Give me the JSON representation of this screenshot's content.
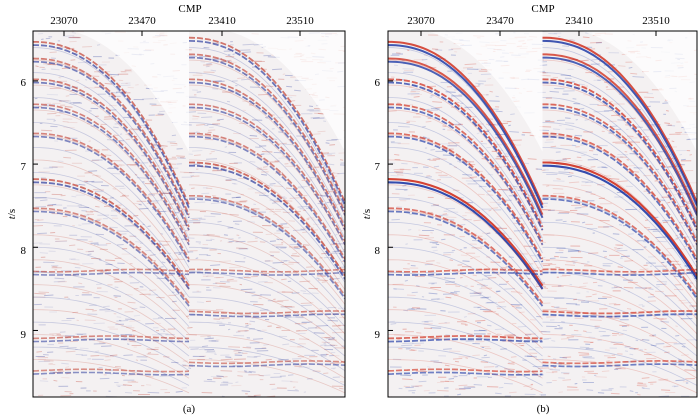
{
  "chart_data": [
    {
      "type": "heatmap",
      "panel_label": "(a)",
      "xlabel": "CMP",
      "ylabel": "t/s",
      "x_tick_labels": [
        "23070",
        "23470",
        "23410",
        "23510"
      ],
      "y_tick_labels": [
        "6",
        "7",
        "8",
        "9"
      ],
      "y_ticks": [
        6,
        7,
        8,
        9
      ],
      "ylim": [
        5.4,
        9.8
      ],
      "y_inverted": true,
      "gathers": 2,
      "events": [
        {
          "gather": 1,
          "kind": "hyperbola",
          "t0": 5.55,
          "amplitude": 0.6
        },
        {
          "gather": 1,
          "kind": "hyperbola",
          "t0": 5.75,
          "amplitude": 0.5
        },
        {
          "gather": 1,
          "kind": "hyperbola",
          "t0": 6.0,
          "amplitude": 0.5
        },
        {
          "gather": 1,
          "kind": "hyperbola",
          "t0": 6.3,
          "amplitude": 0.45
        },
        {
          "gather": 1,
          "kind": "hyperbola",
          "t0": 6.65,
          "amplitude": 0.45
        },
        {
          "gather": 1,
          "kind": "hyperbola",
          "t0": 7.2,
          "amplitude": 0.65
        },
        {
          "gather": 1,
          "kind": "hyperbola",
          "t0": 7.55,
          "amplitude": 0.4
        },
        {
          "gather": 1,
          "kind": "flat",
          "t0": 8.3,
          "amplitude": 0.35
        },
        {
          "gather": 1,
          "kind": "flat",
          "t0": 9.1,
          "amplitude": 0.4
        },
        {
          "gather": 1,
          "kind": "flat",
          "t0": 9.5,
          "amplitude": 0.35
        },
        {
          "gather": 2,
          "kind": "hyperbola",
          "t0": 5.5,
          "amplitude": 0.6
        },
        {
          "gather": 2,
          "kind": "hyperbola",
          "t0": 5.7,
          "amplitude": 0.5
        },
        {
          "gather": 2,
          "kind": "hyperbola",
          "t0": 6.0,
          "amplitude": 0.5
        },
        {
          "gather": 2,
          "kind": "hyperbola",
          "t0": 6.3,
          "amplitude": 0.45
        },
        {
          "gather": 2,
          "kind": "hyperbola",
          "t0": 6.65,
          "amplitude": 0.45
        },
        {
          "gather": 2,
          "kind": "hyperbola",
          "t0": 7.0,
          "amplitude": 0.65
        },
        {
          "gather": 2,
          "kind": "hyperbola",
          "t0": 7.4,
          "amplitude": 0.4
        },
        {
          "gather": 2,
          "kind": "flat",
          "t0": 8.3,
          "amplitude": 0.35
        },
        {
          "gather": 2,
          "kind": "flat",
          "t0": 8.8,
          "amplitude": 0.4
        },
        {
          "gather": 2,
          "kind": "flat",
          "t0": 9.4,
          "amplitude": 0.35
        }
      ],
      "colormap": {
        "negative": "#2a3a9c",
        "zero": "#ffffff",
        "positive": "#c0392b"
      }
    },
    {
      "type": "heatmap",
      "panel_label": "(b)",
      "xlabel": "CMP",
      "ylabel": "t/s",
      "x_tick_labels": [
        "23070",
        "23470",
        "23410",
        "23510"
      ],
      "y_tick_labels": [
        "6",
        "7",
        "8",
        "9"
      ],
      "y_ticks": [
        6,
        7,
        8,
        9
      ],
      "ylim": [
        5.4,
        9.8
      ],
      "y_inverted": true,
      "gathers": 2,
      "events": [
        {
          "gather": 1,
          "kind": "hyperbola",
          "t0": 5.55,
          "amplitude": 0.9
        },
        {
          "gather": 1,
          "kind": "hyperbola",
          "t0": 5.75,
          "amplitude": 0.8
        },
        {
          "gather": 1,
          "kind": "hyperbola",
          "t0": 6.0,
          "amplitude": 0.7
        },
        {
          "gather": 1,
          "kind": "hyperbola",
          "t0": 6.3,
          "amplitude": 0.6
        },
        {
          "gather": 1,
          "kind": "hyperbola",
          "t0": 6.65,
          "amplitude": 0.6
        },
        {
          "gather": 1,
          "kind": "hyperbola",
          "t0": 7.2,
          "amplitude": 1.0
        },
        {
          "gather": 1,
          "kind": "hyperbola",
          "t0": 7.55,
          "amplitude": 0.55
        },
        {
          "gather": 1,
          "kind": "flat",
          "t0": 8.3,
          "amplitude": 0.5
        },
        {
          "gather": 1,
          "kind": "flat",
          "t0": 9.1,
          "amplitude": 0.6
        },
        {
          "gather": 1,
          "kind": "flat",
          "t0": 9.5,
          "amplitude": 0.5
        },
        {
          "gather": 2,
          "kind": "hyperbola",
          "t0": 5.5,
          "amplitude": 0.9
        },
        {
          "gather": 2,
          "kind": "hyperbola",
          "t0": 5.7,
          "amplitude": 0.8
        },
        {
          "gather": 2,
          "kind": "hyperbola",
          "t0": 6.0,
          "amplitude": 0.7
        },
        {
          "gather": 2,
          "kind": "hyperbola",
          "t0": 6.3,
          "amplitude": 0.6
        },
        {
          "gather": 2,
          "kind": "hyperbola",
          "t0": 6.65,
          "amplitude": 0.6
        },
        {
          "gather": 2,
          "kind": "hyperbola",
          "t0": 7.0,
          "amplitude": 1.0
        },
        {
          "gather": 2,
          "kind": "hyperbola",
          "t0": 7.4,
          "amplitude": 0.55
        },
        {
          "gather": 2,
          "kind": "flat",
          "t0": 8.3,
          "amplitude": 0.5
        },
        {
          "gather": 2,
          "kind": "flat",
          "t0": 8.8,
          "amplitude": 0.6
        },
        {
          "gather": 2,
          "kind": "flat",
          "t0": 9.4,
          "amplitude": 0.5
        }
      ],
      "colormap": {
        "negative": "#1f3aa6",
        "zero": "#ffffff",
        "positive": "#d0301f"
      }
    }
  ]
}
